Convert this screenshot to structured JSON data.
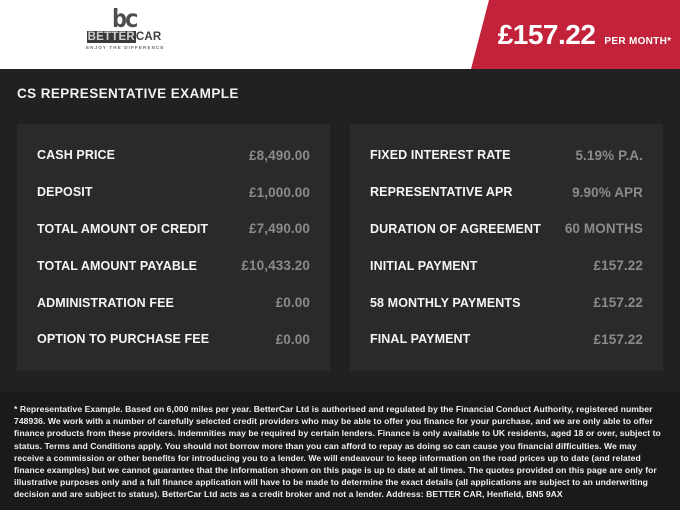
{
  "header": {
    "logo": {
      "monogram": "bc",
      "brand_primary": "BETTER",
      "brand_secondary": "CAR",
      "tagline": "ENJOY THE DIFFERENCE"
    },
    "price_banner": {
      "amount": "£157.22",
      "suffix": "PER MONTH*"
    }
  },
  "colors": {
    "accent_red": "#c2233b",
    "main_background": "#212121",
    "panel_background": "#2a2a2a",
    "footer_background": "#1a1a1a",
    "value_gray": "#8b8b8b"
  },
  "main": {
    "title": "CS REPRESENTATIVE EXAMPLE",
    "left_panel": {
      "rows": [
        {
          "label": "CASH PRICE",
          "value": "£8,490.00"
        },
        {
          "label": "DEPOSIT",
          "value": "£1,000.00"
        },
        {
          "label": "TOTAL AMOUNT OF CREDIT",
          "value": "£7,490.00"
        },
        {
          "label": "TOTAL AMOUNT PAYABLE",
          "value": "£10,433.20"
        },
        {
          "label": "ADMINISTRATION FEE",
          "value": "£0.00"
        },
        {
          "label": "OPTION TO PURCHASE FEE",
          "value": "£0.00"
        }
      ]
    },
    "right_panel": {
      "rows": [
        {
          "label": "FIXED INTEREST RATE",
          "value": "5.19% P.A."
        },
        {
          "label": "REPRESENTATIVE APR",
          "value": "9.90% APR"
        },
        {
          "label": "DURATION OF AGREEMENT",
          "value": "60 MONTHS"
        },
        {
          "label": "INITIAL PAYMENT",
          "value": "£157.22"
        },
        {
          "label": "58 MONTHLY PAYMENTS",
          "value": "£157.22"
        },
        {
          "label": "FINAL PAYMENT",
          "value": "£157.22"
        }
      ]
    }
  },
  "footer": {
    "disclaimer": "* Representative Example. Based on 6,000 miles per year. BetterCar Ltd is authorised and regulated by the Financial Conduct Authority, registered number 748936. We work with a number of carefully selected credit providers who may be able to offer you finance for your purchase, and we are only able to offer finance products from these providers. Indemnities may be required by certain lenders. Finance is only available to UK residents, aged 18 or over, subject to status. Terms and Conditions apply. You should not borrow more than you can afford to repay as doing so can cause you financial difficulties. We may receive a commission or other benefits for introducing you to a lender. We will endeavour to keep information on the road prices up to date (and related finance examples) but we cannot guarantee that the information shown on this page is up to date at all times. The quotes provided on this page are only for illustrative purposes only and a full finance application will have to be made to determine the exact details (all applications are subject to an underwriting decision and are subject to status). BetterCar Ltd acts as a credit broker and not a lender. Address: BETTER CAR, Henfield, BN5 9AX"
  }
}
